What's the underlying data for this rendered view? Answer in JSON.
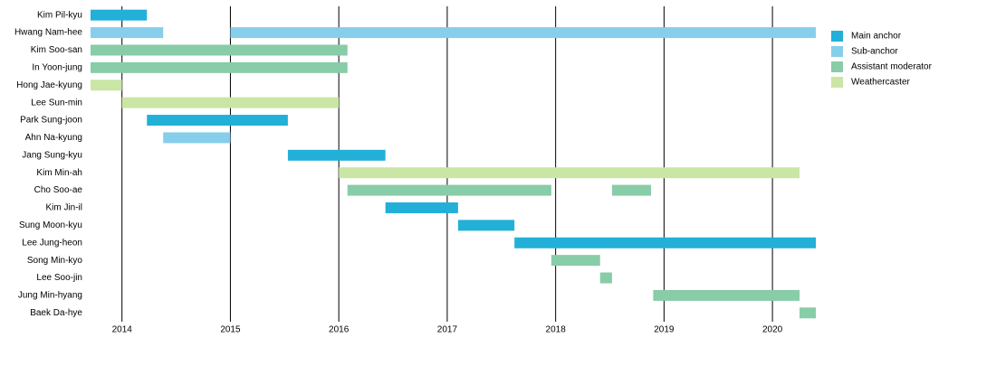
{
  "chart_data": {
    "type": "timeline",
    "categories": [
      "Kim Pil-kyu",
      "Hwang Nam-hee",
      "Kim Soo-san",
      "In Yoon-jung",
      "Hong Jae-kyung",
      "Lee Sun-min",
      "Park Sung-joon",
      "Ahn Na-kyung",
      "Jang Sung-kyu",
      "Kim Min-ah",
      "Cho Soo-ae",
      "Kim Jin-il",
      "Sung Moon-kyu",
      "Lee Jung-heon",
      "Song Min-kyo",
      "Lee Soo-jin",
      "Jung Min-hyang",
      "Baek Da-hye"
    ],
    "series": [
      {
        "name": "Main anchor",
        "color": "#22b0d8",
        "spans": [
          [
            [
              2013.71,
              2014.23
            ]
          ],
          [],
          [],
          [],
          [],
          [],
          [
            [
              2014.23,
              2015.53
            ]
          ],
          [],
          [
            [
              2015.53,
              2016.43
            ]
          ],
          [],
          [],
          [
            [
              2016.43,
              2017.1
            ]
          ],
          [
            [
              2017.1,
              2017.62
            ]
          ],
          [
            [
              2017.62,
              2020.4
            ]
          ],
          [],
          [],
          [],
          []
        ]
      },
      {
        "name": "Sub-anchor",
        "color": "#87ceeb",
        "spans": [
          [],
          [
            [
              2013.71,
              2014.38
            ],
            [
              2015.0,
              2020.4
            ]
          ],
          [],
          [],
          [],
          [],
          [],
          [
            [
              2014.38,
              2015.0
            ]
          ],
          [],
          [],
          [],
          [],
          [],
          [],
          [],
          [],
          [],
          []
        ]
      },
      {
        "name": "Assistant moderator",
        "color": "#88cca8",
        "spans": [
          [],
          [],
          [
            [
              2013.71,
              2016.08
            ]
          ],
          [
            [
              2013.71,
              2016.08
            ]
          ],
          [],
          [],
          [],
          [],
          [],
          [],
          [
            [
              2016.08,
              2017.96
            ],
            [
              2018.52,
              2018.88
            ]
          ],
          [],
          [],
          [],
          [
            [
              2017.96,
              2018.41
            ]
          ],
          [
            [
              2018.41,
              2018.52
            ]
          ],
          [
            [
              2018.9,
              2020.25
            ]
          ],
          [
            [
              2020.25,
              2020.4
            ]
          ]
        ]
      },
      {
        "name": "Weathercaster",
        "color": "#c9e6a5",
        "spans": [
          [],
          [],
          [],
          [],
          [
            [
              2013.71,
              2014.0
            ]
          ],
          [
            [
              2014.0,
              2016.0
            ]
          ],
          [],
          [],
          [],
          [
            [
              2016.0,
              2020.25
            ]
          ],
          [],
          [],
          [],
          [],
          [],
          [],
          [],
          []
        ]
      }
    ],
    "xlim": [
      2013.71,
      2020.4
    ],
    "xticks": [
      2014,
      2015,
      2016,
      2017,
      2018,
      2019,
      2020
    ],
    "grid": true,
    "legend": "top-right"
  }
}
